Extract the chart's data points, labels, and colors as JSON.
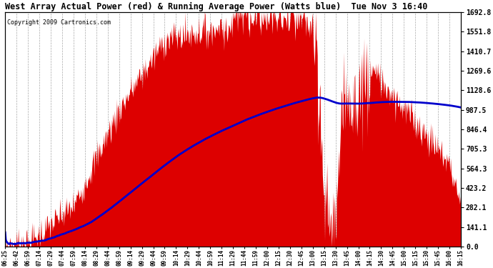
{
  "title": "West Array Actual Power (red) & Running Average Power (Watts blue)  Tue Nov 3 16:40",
  "copyright": "Copyright 2009 Cartronics.com",
  "ylabel_right_ticks": [
    0.0,
    141.1,
    282.1,
    423.2,
    564.3,
    705.3,
    846.4,
    987.5,
    1128.6,
    1269.6,
    1410.7,
    1551.8,
    1692.8
  ],
  "ylim": [
    0,
    1692.8
  ],
  "background_color": "#ffffff",
  "grid_color": "#aaaaaa",
  "red_color": "#dd0000",
  "blue_color": "#0000cc",
  "x_labels": [
    "06:25",
    "06:42",
    "06:59",
    "07:14",
    "07:29",
    "07:44",
    "07:59",
    "08:14",
    "08:29",
    "08:44",
    "08:59",
    "09:14",
    "09:29",
    "09:44",
    "09:59",
    "10:14",
    "10:29",
    "10:44",
    "10:59",
    "11:14",
    "11:29",
    "11:44",
    "11:59",
    "12:00",
    "12:15",
    "12:30",
    "12:45",
    "13:00",
    "13:15",
    "13:30",
    "13:45",
    "14:00",
    "14:15",
    "14:30",
    "14:45",
    "15:00",
    "15:15",
    "15:30",
    "15:45",
    "16:00",
    "16:15"
  ]
}
